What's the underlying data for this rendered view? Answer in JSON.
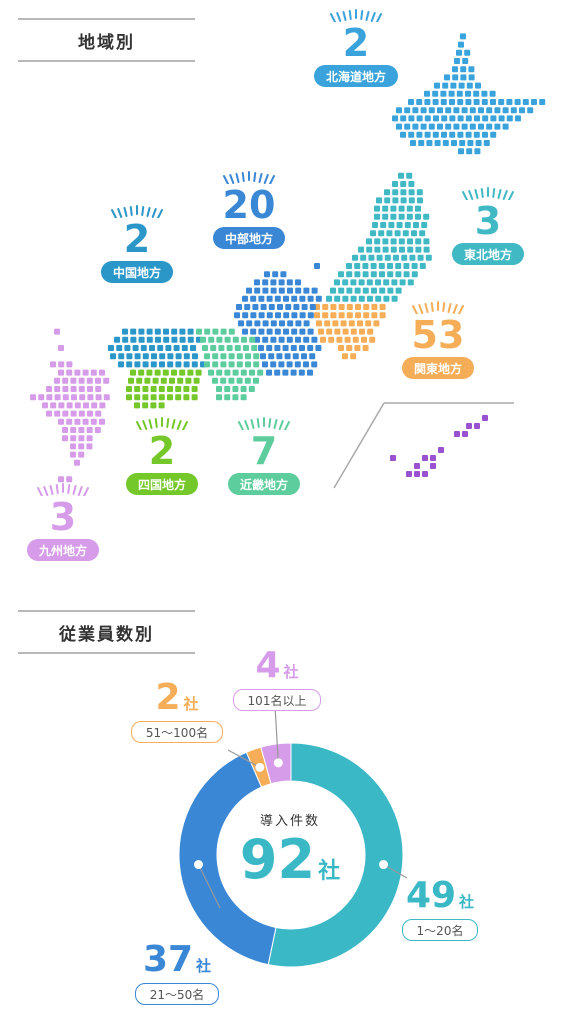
{
  "region_section": {
    "title": "地域別"
  },
  "regions": [
    {
      "id": "hokkaido",
      "name": "北海道地方",
      "count": "2",
      "color": "#3aa3dc"
    },
    {
      "id": "tohoku",
      "name": "東北地方",
      "count": "3",
      "color": "#40b9c4"
    },
    {
      "id": "kanto",
      "name": "関東地方",
      "count": "53",
      "color": "#f5ad58"
    },
    {
      "id": "chubu",
      "name": "中部地方",
      "count": "20",
      "color": "#3a87d6"
    },
    {
      "id": "chugoku",
      "name": "中国地方",
      "count": "2",
      "color": "#2b97c9"
    },
    {
      "id": "kinki",
      "name": "近畿地方",
      "count": "7",
      "color": "#5ecd9d"
    },
    {
      "id": "shikoku",
      "name": "四国地方",
      "count": "2",
      "color": "#74c82a"
    },
    {
      "id": "kyushu",
      "name": "九州地方",
      "count": "3",
      "color": "#d69ce9"
    },
    {
      "id": "okinawa",
      "name": "",
      "count": "",
      "color": "#9b52d1"
    }
  ],
  "employee_section": {
    "title": "従業員数別"
  },
  "chart_data": {
    "type": "pie",
    "center_title": "導入件数",
    "total": 92,
    "total_unit": "社",
    "slices": [
      {
        "label": "1〜20名",
        "value": 49,
        "unit": "社",
        "color": "#3ab8c6"
      },
      {
        "label": "21〜50名",
        "value": 37,
        "unit": "社",
        "color": "#3a87d6"
      },
      {
        "label": "51〜100名",
        "value": 2,
        "unit": "社",
        "color": "#f5ad58"
      },
      {
        "label": "101名以上",
        "value": 4,
        "unit": "社",
        "color": "#d69ce9"
      }
    ]
  }
}
